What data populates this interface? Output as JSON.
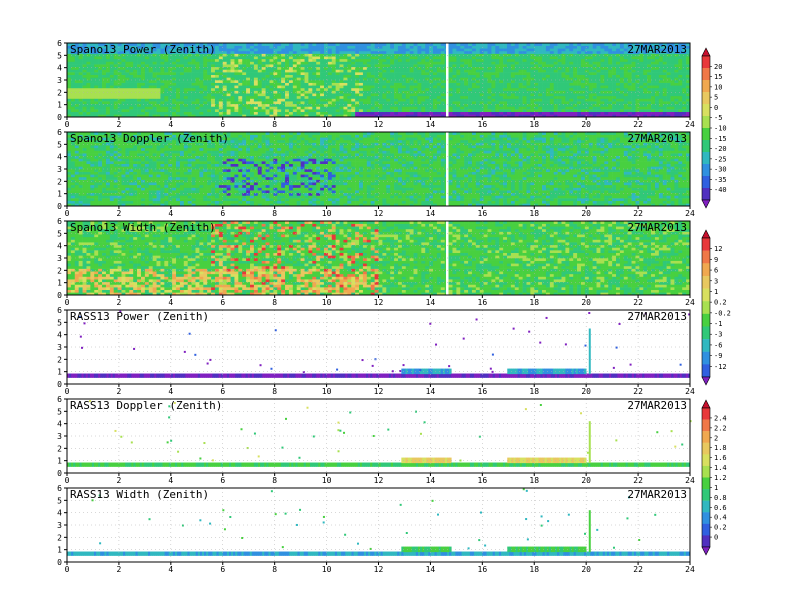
{
  "chart_data": [
    {
      "type": "heatmap",
      "title": "Spano13 Power (Zenith)",
      "date": "27MAR2013",
      "xlim": [
        0,
        24
      ],
      "ylim": [
        0,
        6
      ],
      "xticks": [
        "0",
        "2",
        "4",
        "6",
        "8",
        "10",
        "12",
        "14",
        "16",
        "18",
        "20",
        "22",
        "24"
      ],
      "yticks": [
        "0",
        "1",
        "2",
        "3",
        "4",
        "5",
        "6"
      ],
      "colorbar": "cb1"
    },
    {
      "type": "heatmap",
      "title": "Spano13 Doppler (Zenith)",
      "date": "27MAR2013",
      "xlim": [
        0,
        24
      ],
      "ylim": [
        0,
        6
      ],
      "xticks": [
        "0",
        "2",
        "4",
        "6",
        "8",
        "10",
        "12",
        "14",
        "16",
        "18",
        "20",
        "22",
        "24"
      ],
      "yticks": [
        "0",
        "1",
        "2",
        "3",
        "4",
        "5",
        "6"
      ],
      "colorbar": "cb1"
    },
    {
      "type": "heatmap",
      "title": "Spano13 Width (Zenith)",
      "date": "27MAR2013",
      "xlim": [
        0,
        24
      ],
      "ylim": [
        0,
        6
      ],
      "xticks": [
        "0",
        "2",
        "4",
        "6",
        "8",
        "10",
        "12",
        "14",
        "16",
        "18",
        "20",
        "22",
        "24"
      ],
      "yticks": [
        "0",
        "1",
        "2",
        "3",
        "4",
        "5",
        "6"
      ],
      "colorbar": "cb2"
    },
    {
      "type": "scatter",
      "title": "RASS13 Power (Zenith)",
      "date": "27MAR2013",
      "xlim": [
        0,
        24
      ],
      "ylim": [
        0,
        6
      ],
      "xticks": [
        "0",
        "2",
        "4",
        "6",
        "8",
        "10",
        "12",
        "14",
        "16",
        "18",
        "20",
        "22",
        "24"
      ],
      "yticks": [
        "0",
        "1",
        "2",
        "3",
        "4",
        "5",
        "6"
      ],
      "colorbar": "cb2"
    },
    {
      "type": "scatter",
      "title": "RASS13 Doppler (Zenith)",
      "date": "27MAR2013",
      "xlim": [
        0,
        24
      ],
      "ylim": [
        0,
        6
      ],
      "xticks": [
        "0",
        "2",
        "4",
        "6",
        "8",
        "10",
        "12",
        "14",
        "16",
        "18",
        "20",
        "22",
        "24"
      ],
      "yticks": [
        "0",
        "1",
        "2",
        "3",
        "4",
        "5",
        "6"
      ],
      "colorbar": "cb3"
    },
    {
      "type": "scatter",
      "title": "RASS13 Width (Zenith)",
      "date": "27MAR2013",
      "xlim": [
        0,
        24
      ],
      "ylim": [
        0,
        6
      ],
      "xticks": [
        "0",
        "2",
        "4",
        "6",
        "8",
        "10",
        "12",
        "14",
        "16",
        "18",
        "20",
        "22",
        "24"
      ],
      "yticks": [
        "0",
        "1",
        "2",
        "3",
        "4",
        "5",
        "6"
      ],
      "colorbar": "cb3"
    }
  ],
  "colorbars": {
    "cb1": {
      "labels": [
        "20",
        "15",
        "10",
        "5",
        "0",
        "-5",
        "-10",
        "-15",
        "-20",
        "-25",
        "-30",
        "-35",
        "-40"
      ],
      "colors": [
        "#c8102e",
        "#e8383a",
        "#f07848",
        "#f0a850",
        "#e8c860",
        "#d8e060",
        "#a8e050",
        "#48d040",
        "#30c878",
        "#30b8c0",
        "#3090e0",
        "#3060e0",
        "#5030c0",
        "#8020c0"
      ]
    },
    "cb2": {
      "labels": [
        "12",
        "9",
        "6",
        "3",
        "1",
        "0.2",
        "-0.2",
        "-1",
        "-3",
        "-6",
        "-9",
        "-12"
      ],
      "colors": [
        "#c8102e",
        "#e8383a",
        "#f07848",
        "#f0a850",
        "#e8c860",
        "#d8e060",
        "#a8e050",
        "#48d040",
        "#30c878",
        "#30b8c0",
        "#3090e0",
        "#3060e0",
        "#8020c0"
      ]
    },
    "cb3": {
      "labels": [
        "2.4",
        "2.2",
        "2",
        "1.8",
        "1.6",
        "1.4",
        "1.2",
        "1",
        "0.8",
        "0.6",
        "0.4",
        "0.2",
        "0"
      ],
      "colors": [
        "#c8102e",
        "#e8383a",
        "#f07848",
        "#f0a850",
        "#e8c860",
        "#d8e060",
        "#a8e050",
        "#48d040",
        "#30c878",
        "#30b8c0",
        "#3090e0",
        "#3060e0",
        "#5030c0",
        "#8020c0"
      ]
    }
  }
}
